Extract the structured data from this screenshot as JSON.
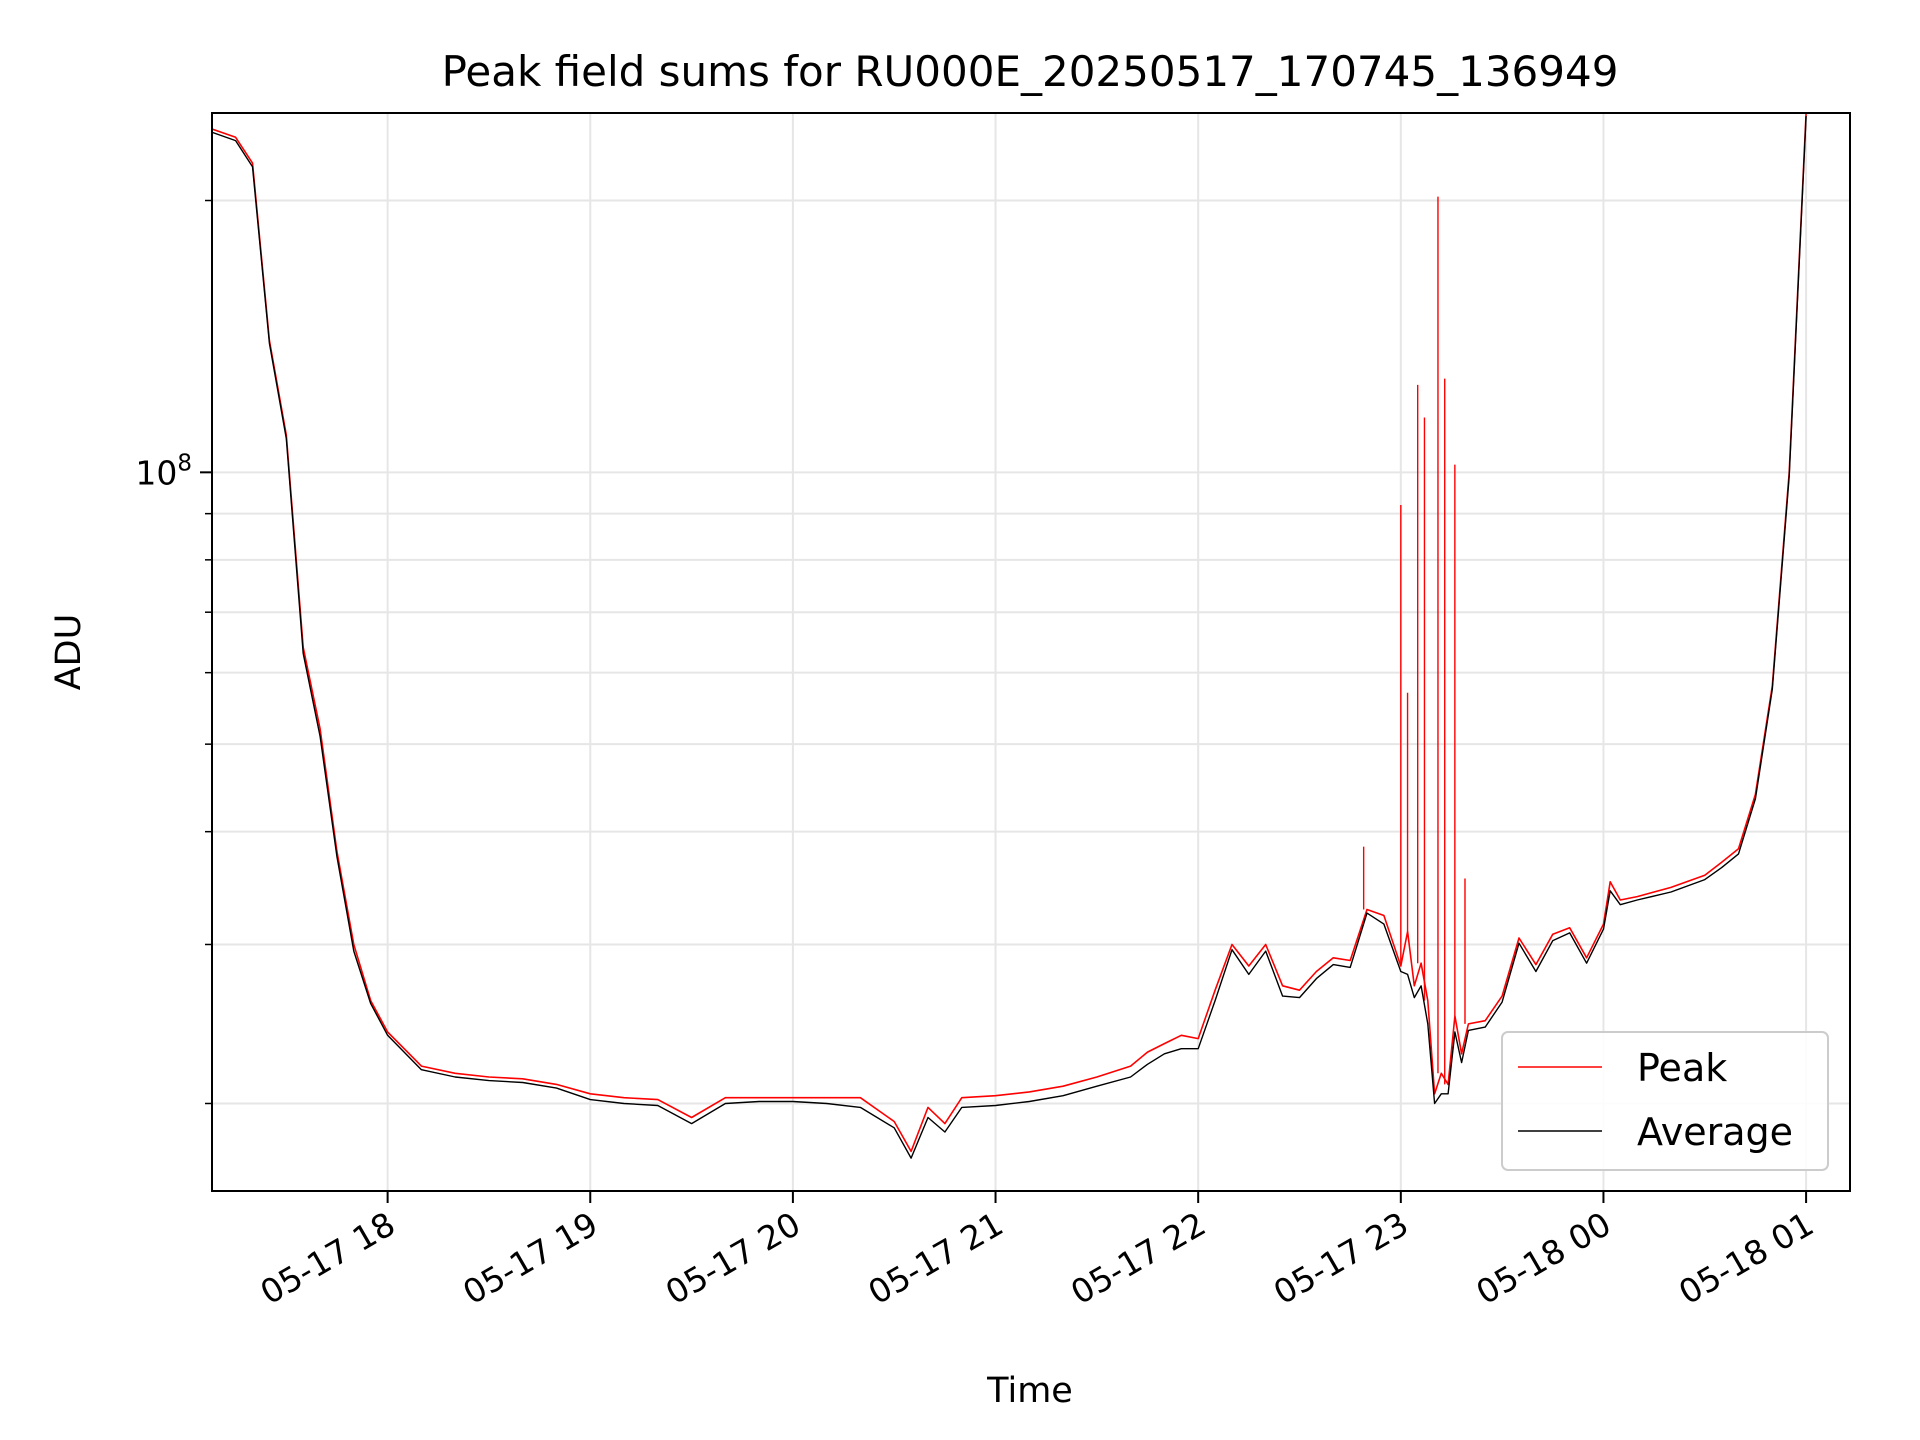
{
  "chart_data": {
    "type": "line",
    "title": "Peak field sums for RU000E_20250517_170745_136949",
    "xlabel": "Time",
    "ylabel": "ADU",
    "y_scale": "log",
    "grid": true,
    "legend_position": "lower right",
    "xlim": [
      "2025-05-17 17:08",
      "2025-05-18 01:13"
    ],
    "ylim": [
      16000000,
      250000000
    ],
    "x_ticks": [
      "05-17 18",
      "05-17 19",
      "05-17 20",
      "05-17 21",
      "05-17 22",
      "05-17 23",
      "05-18 00",
      "05-18 01"
    ],
    "y_ticks": [
      {
        "label": "10",
        "exponent": "8",
        "value": 100000000
      }
    ],
    "series": [
      {
        "name": "Peak",
        "color": "#ff0000",
        "x": [
          "2025-05-17 17:08",
          "2025-05-17 17:15",
          "2025-05-17 17:20",
          "2025-05-17 17:25",
          "2025-05-17 17:30",
          "2025-05-17 17:35",
          "2025-05-17 17:40",
          "2025-05-17 17:45",
          "2025-05-17 17:50",
          "2025-05-17 17:55",
          "2025-05-17 18:00",
          "2025-05-17 18:10",
          "2025-05-17 18:20",
          "2025-05-17 18:30",
          "2025-05-17 18:40",
          "2025-05-17 18:50",
          "2025-05-17 19:00",
          "2025-05-17 19:10",
          "2025-05-17 19:20",
          "2025-05-17 19:30",
          "2025-05-17 19:40",
          "2025-05-17 19:50",
          "2025-05-17 20:00",
          "2025-05-17 20:10",
          "2025-05-17 20:20",
          "2025-05-17 20:30",
          "2025-05-17 20:35",
          "2025-05-17 20:40",
          "2025-05-17 20:45",
          "2025-05-17 20:50",
          "2025-05-17 21:00",
          "2025-05-17 21:10",
          "2025-05-17 21:20",
          "2025-05-17 21:30",
          "2025-05-17 21:40",
          "2025-05-17 21:45",
          "2025-05-17 21:50",
          "2025-05-17 21:55",
          "2025-05-17 22:00",
          "2025-05-17 22:05",
          "2025-05-17 22:10",
          "2025-05-17 22:15",
          "2025-05-17 22:20",
          "2025-05-17 22:25",
          "2025-05-17 22:30",
          "2025-05-17 22:35",
          "2025-05-17 22:40",
          "2025-05-17 22:45",
          "2025-05-17 22:50",
          "2025-05-17 22:55",
          "2025-05-17 23:00",
          "2025-05-17 23:02",
          "2025-05-17 23:04",
          "2025-05-17 23:06",
          "2025-05-17 23:08",
          "2025-05-17 23:10",
          "2025-05-17 23:12",
          "2025-05-17 23:14",
          "2025-05-17 23:16",
          "2025-05-17 23:18",
          "2025-05-17 23:20",
          "2025-05-17 23:25",
          "2025-05-17 23:30",
          "2025-05-17 23:35",
          "2025-05-17 23:40",
          "2025-05-17 23:45",
          "2025-05-17 23:50",
          "2025-05-17 23:55",
          "2025-05-18 00:00",
          "2025-05-18 00:02",
          "2025-05-18 00:05",
          "2025-05-18 00:10",
          "2025-05-18 00:20",
          "2025-05-18 00:30",
          "2025-05-18 00:35",
          "2025-05-18 00:40",
          "2025-05-18 00:45",
          "2025-05-18 00:50",
          "2025-05-18 00:55",
          "2025-05-18 01:00"
        ],
        "y": [
          240000000,
          235000000,
          220000000,
          140000000,
          110000000,
          64000000,
          52000000,
          38000000,
          30000000,
          26000000,
          24000000,
          22000000,
          21600000,
          21400000,
          21300000,
          21000000,
          20500000,
          20300000,
          20200000,
          19300000,
          20300000,
          20300000,
          20300000,
          20300000,
          20300000,
          19100000,
          17700000,
          19800000,
          19000000,
          20300000,
          20400000,
          20600000,
          20900000,
          21400000,
          22000000,
          22800000,
          23300000,
          23800000,
          23600000,
          26700000,
          30000000,
          28400000,
          30000000,
          27000000,
          26700000,
          28000000,
          29000000,
          28800000,
          32800000,
          32300000,
          28400000,
          31000000,
          27000000,
          28600000,
          26000000,
          20500000,
          21600000,
          21000000,
          25000000,
          22700000,
          24500000,
          24700000,
          26300000,
          30500000,
          28500000,
          30800000,
          31300000,
          29000000,
          31600000,
          35200000,
          33600000,
          33900000,
          34700000,
          35800000,
          37000000,
          38300000,
          44000000,
          58000000,
          100000000,
          250000000
        ],
        "spikes": [
          {
            "x": "2025-05-17 22:49",
            "y": 38500000
          },
          {
            "x": "2025-05-17 23:00",
            "y": 92000000
          },
          {
            "x": "2025-05-17 23:02",
            "y": 57000000
          },
          {
            "x": "2025-05-17 23:05",
            "y": 125000000
          },
          {
            "x": "2025-05-17 23:07",
            "y": 115000000
          },
          {
            "x": "2025-05-17 23:11",
            "y": 202000000
          },
          {
            "x": "2025-05-17 23:13",
            "y": 127000000
          },
          {
            "x": "2025-05-17 23:16",
            "y": 102000000
          },
          {
            "x": "2025-05-17 23:19",
            "y": 35500000
          }
        ]
      },
      {
        "name": "Average",
        "color": "#000000",
        "x": [
          "2025-05-17 17:08",
          "2025-05-17 17:15",
          "2025-05-17 17:20",
          "2025-05-17 17:25",
          "2025-05-17 17:30",
          "2025-05-17 17:35",
          "2025-05-17 17:40",
          "2025-05-17 17:45",
          "2025-05-17 17:50",
          "2025-05-17 17:55",
          "2025-05-17 18:00",
          "2025-05-17 18:10",
          "2025-05-17 18:20",
          "2025-05-17 18:30",
          "2025-05-17 18:40",
          "2025-05-17 18:50",
          "2025-05-17 19:00",
          "2025-05-17 19:10",
          "2025-05-17 19:20",
          "2025-05-17 19:30",
          "2025-05-17 19:40",
          "2025-05-17 19:50",
          "2025-05-17 20:00",
          "2025-05-17 20:10",
          "2025-05-17 20:20",
          "2025-05-17 20:30",
          "2025-05-17 20:35",
          "2025-05-17 20:40",
          "2025-05-17 20:45",
          "2025-05-17 20:50",
          "2025-05-17 21:00",
          "2025-05-17 21:10",
          "2025-05-17 21:20",
          "2025-05-17 21:30",
          "2025-05-17 21:40",
          "2025-05-17 21:45",
          "2025-05-17 21:50",
          "2025-05-17 21:55",
          "2025-05-17 22:00",
          "2025-05-17 22:05",
          "2025-05-17 22:10",
          "2025-05-17 22:15",
          "2025-05-17 22:20",
          "2025-05-17 22:25",
          "2025-05-17 22:30",
          "2025-05-17 22:35",
          "2025-05-17 22:40",
          "2025-05-17 22:45",
          "2025-05-17 22:50",
          "2025-05-17 22:55",
          "2025-05-17 23:00",
          "2025-05-17 23:02",
          "2025-05-17 23:04",
          "2025-05-17 23:06",
          "2025-05-17 23:08",
          "2025-05-17 23:10",
          "2025-05-17 23:12",
          "2025-05-17 23:14",
          "2025-05-17 23:16",
          "2025-05-17 23:18",
          "2025-05-17 23:20",
          "2025-05-17 23:25",
          "2025-05-17 23:30",
          "2025-05-17 23:35",
          "2025-05-17 23:40",
          "2025-05-17 23:45",
          "2025-05-17 23:50",
          "2025-05-17 23:55",
          "2025-05-18 00:00",
          "2025-05-18 00:02",
          "2025-05-18 00:05",
          "2025-05-18 00:10",
          "2025-05-18 00:20",
          "2025-05-18 00:30",
          "2025-05-18 00:35",
          "2025-05-18 00:40",
          "2025-05-18 00:45",
          "2025-05-18 00:50",
          "2025-05-18 00:55",
          "2025-05-18 01:00"
        ],
        "y": [
          238000000,
          233000000,
          218000000,
          139000000,
          109000000,
          63000000,
          51000000,
          37500000,
          29500000,
          25800000,
          23800000,
          21800000,
          21400000,
          21200000,
          21100000,
          20800000,
          20200000,
          20000000,
          19900000,
          19000000,
          20000000,
          20100000,
          20100000,
          20000000,
          19800000,
          18800000,
          17400000,
          19300000,
          18600000,
          19800000,
          19900000,
          20100000,
          20400000,
          20900000,
          21400000,
          22100000,
          22700000,
          23000000,
          23000000,
          26000000,
          29600000,
          27800000,
          29500000,
          26300000,
          26200000,
          27500000,
          28500000,
          28300000,
          32500000,
          31600000,
          28000000,
          27800000,
          26200000,
          27000000,
          24500000,
          20000000,
          20500000,
          20500000,
          24000000,
          22200000,
          24100000,
          24300000,
          25900000,
          30100000,
          28000000,
          30300000,
          30900000,
          28600000,
          31200000,
          34400000,
          33200000,
          33600000,
          34300000,
          35400000,
          36500000,
          37800000,
          43500000,
          57500000,
          99000000,
          248000000
        ]
      }
    ]
  }
}
